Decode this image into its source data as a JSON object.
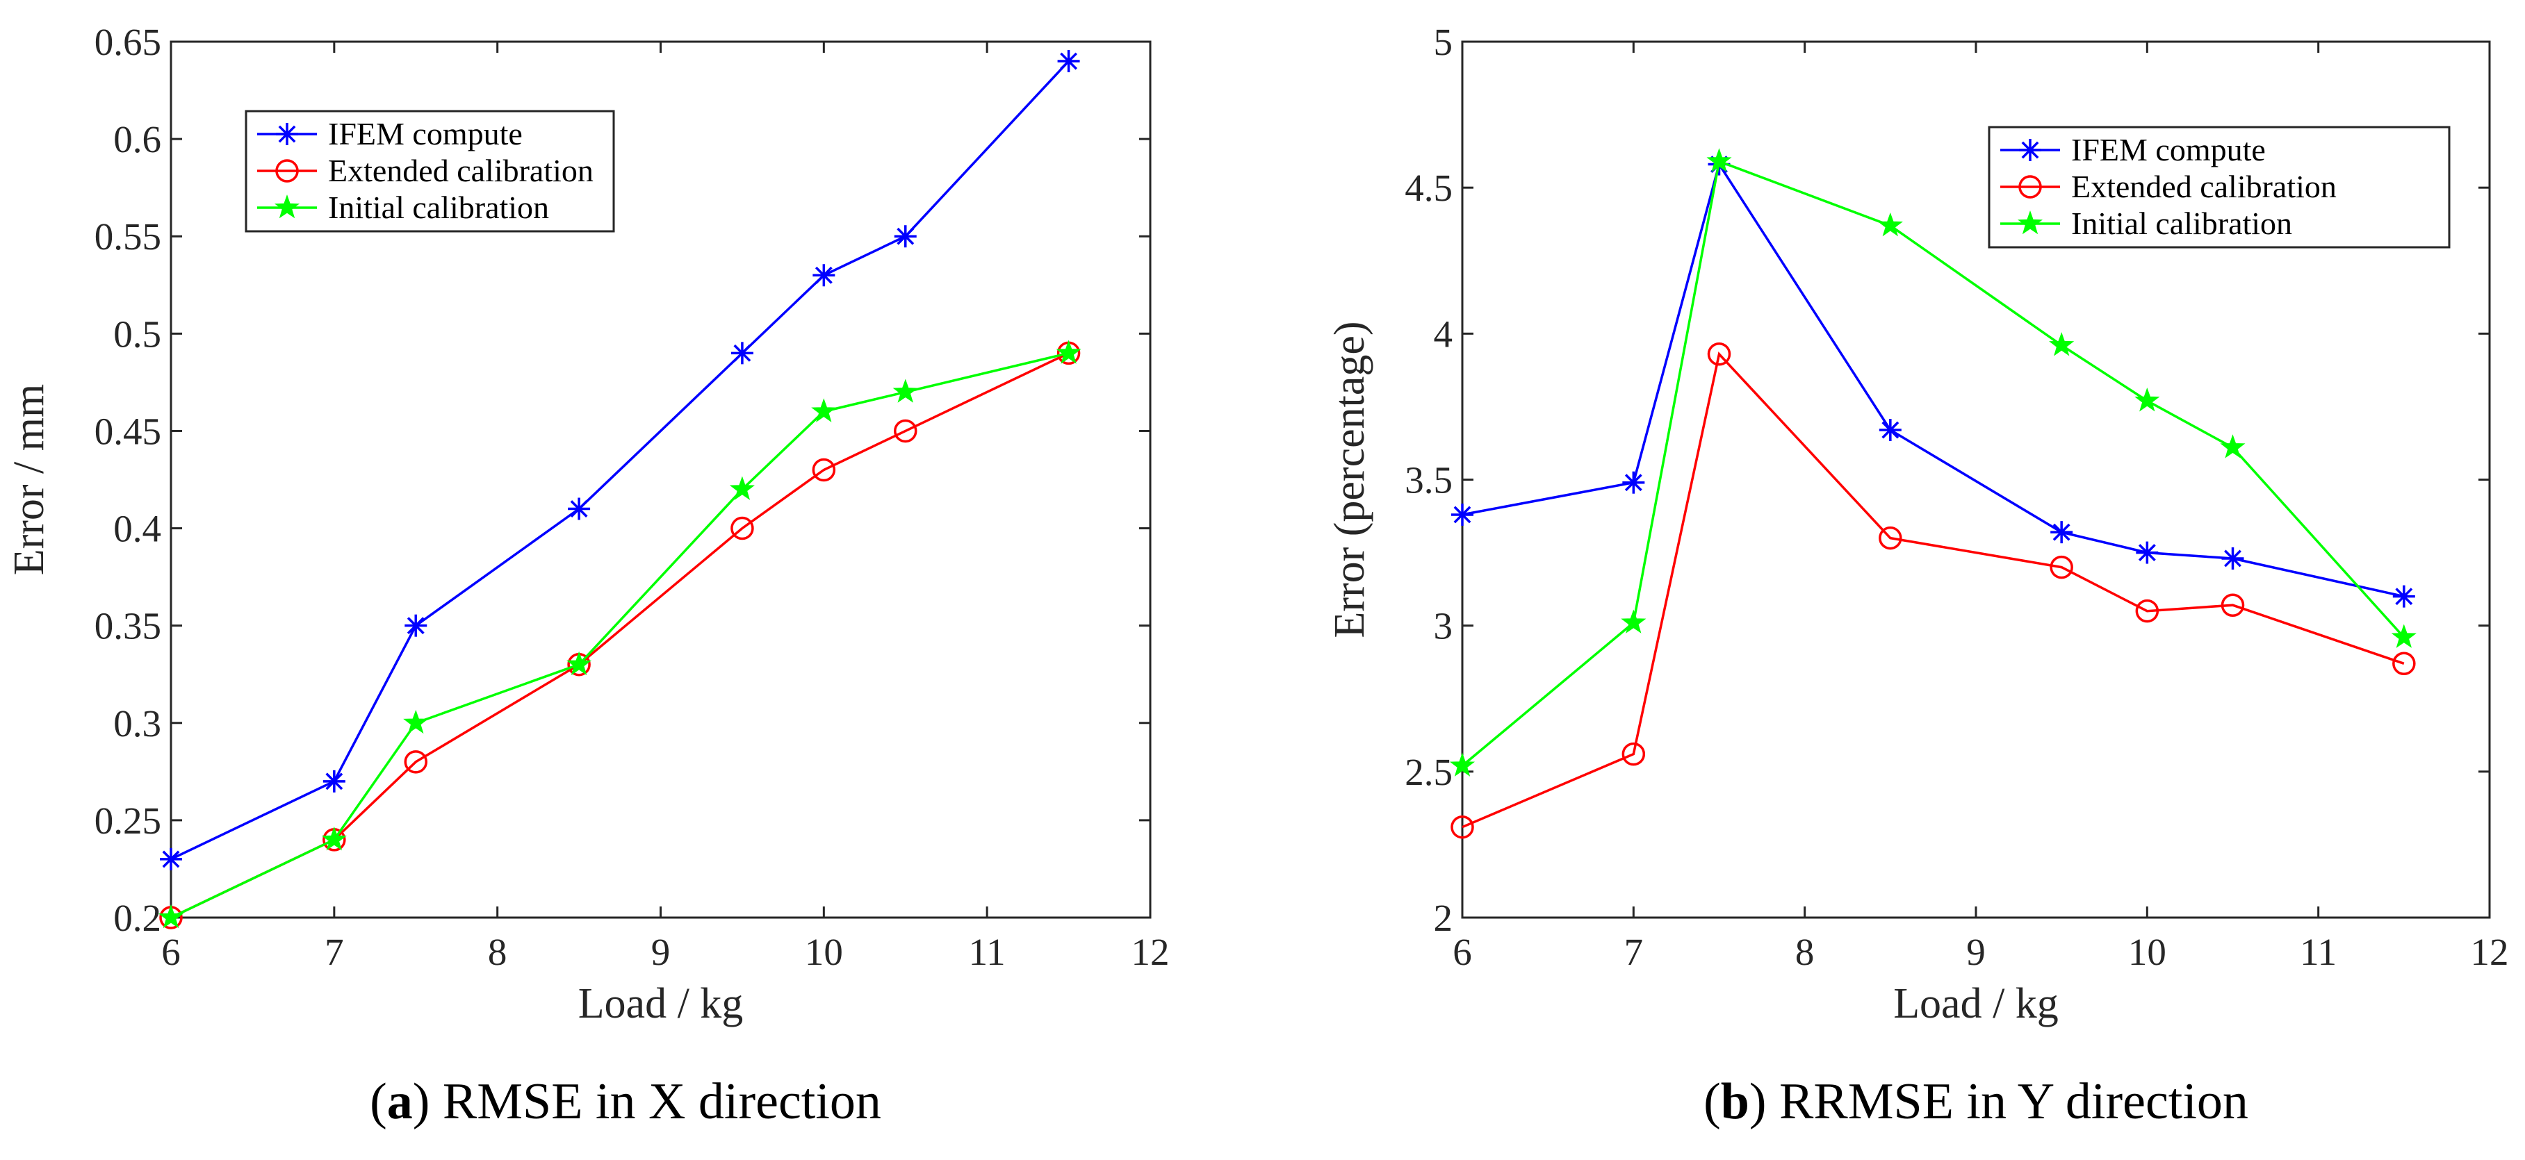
{
  "colors": {
    "ifem": "#0000ff",
    "extended": "#ff0000",
    "initial": "#00ff00",
    "axis": "#262626"
  },
  "chart_data": [
    {
      "type": "line",
      "panel_label": "a",
      "caption": "RMSE in X direction",
      "xlabel": "Load / kg",
      "ylabel": "Error / mm",
      "xlim": [
        6,
        12
      ],
      "ylim": [
        0.2,
        0.65
      ],
      "xticks": [
        "6",
        "7",
        "8",
        "9",
        "10",
        "11",
        "12"
      ],
      "yticks": [
        "0.2",
        "0.25",
        "0.3",
        "0.35",
        "0.4",
        "0.45",
        "0.5",
        "0.55",
        "0.6",
        "0.65"
      ],
      "legend_position": "top-left",
      "x": [
        6,
        7,
        7.5,
        8.5,
        9.5,
        10,
        10.5,
        11.5
      ],
      "series": [
        {
          "name": "IFEM compute",
          "marker": "asterisk",
          "color_key": "ifem",
          "values": [
            0.23,
            0.27,
            0.35,
            0.41,
            0.49,
            0.53,
            0.55,
            0.64
          ]
        },
        {
          "name": "Extended calibration",
          "marker": "circle",
          "color_key": "extended",
          "values": [
            0.2,
            0.24,
            0.28,
            0.33,
            0.4,
            0.43,
            0.45,
            0.49
          ]
        },
        {
          "name": "Initial calibration",
          "marker": "star",
          "color_key": "initial",
          "values": [
            0.2,
            0.24,
            0.3,
            0.33,
            0.42,
            0.46,
            0.47,
            0.49
          ]
        }
      ]
    },
    {
      "type": "line",
      "panel_label": "b",
      "caption": "RRMSE in Y direction",
      "xlabel": "Load / kg",
      "ylabel": "Error (percentage)",
      "xlim": [
        6,
        12
      ],
      "ylim": [
        2,
        5
      ],
      "xticks": [
        "6",
        "7",
        "8",
        "9",
        "10",
        "11",
        "12"
      ],
      "yticks": [
        "2",
        "2.5",
        "3",
        "3.5",
        "4",
        "4.5",
        "5"
      ],
      "legend_position": "top-right",
      "x": [
        6,
        7,
        7.5,
        8.5,
        9.5,
        10,
        10.5,
        11.5
      ],
      "series": [
        {
          "name": "IFEM compute",
          "marker": "asterisk",
          "color_key": "ifem",
          "values": [
            3.38,
            3.49,
            4.58,
            3.67,
            3.32,
            3.25,
            3.23,
            3.1
          ]
        },
        {
          "name": "Extended calibration",
          "marker": "circle",
          "color_key": "extended",
          "values": [
            2.31,
            2.56,
            3.93,
            3.3,
            3.2,
            3.05,
            3.07,
            2.87
          ]
        },
        {
          "name": "Initial calibration",
          "marker": "star",
          "color_key": "initial",
          "values": [
            2.52,
            3.01,
            4.59,
            4.37,
            3.96,
            3.77,
            3.61,
            2.96
          ]
        }
      ]
    }
  ]
}
